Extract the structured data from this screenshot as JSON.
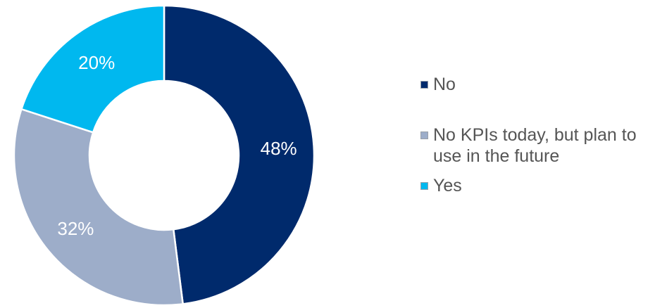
{
  "chart_data": {
    "type": "pie",
    "donut": true,
    "categories": [
      "No",
      "No KPIs today, but plan to use in the future",
      "Yes"
    ],
    "values": [
      48,
      32,
      20
    ],
    "value_labels": [
      "48%",
      "32%",
      "20%"
    ],
    "colors": [
      "#002a6c",
      "#9dadc9",
      "#00b8ef"
    ],
    "legend_position": "right",
    "title": ""
  }
}
